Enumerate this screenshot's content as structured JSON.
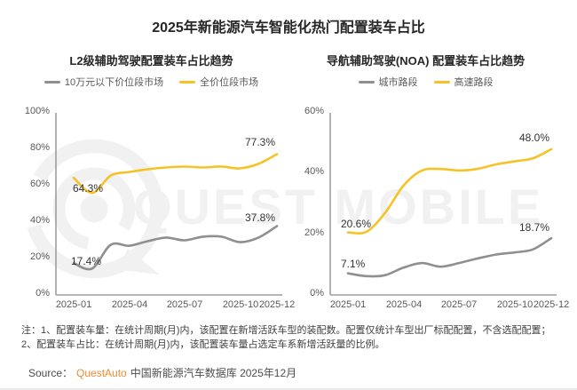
{
  "page": {
    "title": "2025年新能源汽车智能化热门配置装车占比",
    "watermark": "QUEST MOBILE",
    "notes": [
      "注：1、配置装车量：在统计周期(月)内，该配置在新增活跃车型的装配数。配置仅统计车型出厂标配配置，不含选配配置；",
      "2、配置装车占比：在统计周期(月)内，该配置装车量占选定车系新增活跃量的比例。"
    ],
    "source": {
      "prefix": "Source：",
      "brand": "QuestAuto",
      "suffix": "中国新能源汽车数据库 2025年12月"
    }
  },
  "colors": {
    "accent_yellow": "#f5c327",
    "line_gray": "#8f8f8f",
    "brand_orange": "#f08b30",
    "watermark_gray": "#f1f1f1"
  },
  "chart_data": [
    {
      "type": "line",
      "title": "L2级辅助驾驶配置装车占比趋势",
      "x": [
        "2025-01",
        "2025-02",
        "2025-03",
        "2025-04",
        "2025-05",
        "2025-06",
        "2025-07",
        "2025-08",
        "2025-09",
        "2025-10",
        "2025-11",
        "2025-12"
      ],
      "xticks": [
        "2025-01",
        "2025-04",
        "2025-07",
        "2025-10",
        "2025-12"
      ],
      "yticks": [
        "100%",
        "80%",
        "60%",
        "40%",
        "20%",
        "0%"
      ],
      "ylim": [
        0,
        100
      ],
      "grid": false,
      "legend_position": "top",
      "series": [
        {
          "name": "10万元以下价位段市场",
          "color": "#8f8f8f",
          "values": [
            17.4,
            14.5,
            27.5,
            27.0,
            29.5,
            31.5,
            30.0,
            32.0,
            32.0,
            29.0,
            31.5,
            37.8
          ]
        },
        {
          "name": "全价位段市场",
          "color": "#f5c327",
          "values": [
            64.3,
            56.0,
            65.5,
            67.5,
            69.0,
            70.0,
            70.5,
            70.0,
            70.5,
            69.5,
            72.0,
            77.3
          ]
        }
      ],
      "annotations": [
        {
          "series": "全价位段市场",
          "point": "2025-01",
          "text": "64.3%"
        },
        {
          "series": "全价位段市场",
          "point": "2025-12",
          "text": "77.3%"
        },
        {
          "series": "10万元以下价位段市场",
          "point": "2025-01",
          "text": "17.4%"
        },
        {
          "series": "10万元以下价位段市场",
          "point": "2025-12",
          "text": "37.8%"
        }
      ]
    },
    {
      "type": "line",
      "title": "导航辅助驾驶(NOA) 配置装车占比趋势",
      "x": [
        "2025-01",
        "2025-02",
        "2025-03",
        "2025-04",
        "2025-05",
        "2025-06",
        "2025-07",
        "2025-08",
        "2025-09",
        "2025-10",
        "2025-11",
        "2025-12"
      ],
      "xticks": [
        "2025-01",
        "2025-04",
        "2025-07",
        "2025-10",
        "2025-12"
      ],
      "yticks": [
        "60%",
        "40%",
        "20%",
        "0%"
      ],
      "ylim": [
        0,
        60
      ],
      "grid": false,
      "legend_position": "top",
      "series": [
        {
          "name": "城市路段",
          "color": "#8f8f8f",
          "values": [
            7.1,
            6.2,
            6.5,
            9.0,
            10.5,
            9.3,
            10.5,
            12.0,
            13.3,
            14.0,
            15.0,
            18.7
          ]
        },
        {
          "name": "高速路段",
          "color": "#f5c327",
          "values": [
            20.6,
            20.8,
            27.0,
            36.0,
            41.0,
            41.5,
            41.0,
            41.5,
            43.0,
            44.0,
            45.0,
            48.0
          ]
        }
      ],
      "annotations": [
        {
          "series": "高速路段",
          "point": "2025-01",
          "text": "20.6%"
        },
        {
          "series": "高速路段",
          "point": "2025-12",
          "text": "48.0%"
        },
        {
          "series": "城市路段",
          "point": "2025-01",
          "text": "7.1%"
        },
        {
          "series": "城市路段",
          "point": "2025-12",
          "text": "18.7%"
        }
      ]
    }
  ]
}
